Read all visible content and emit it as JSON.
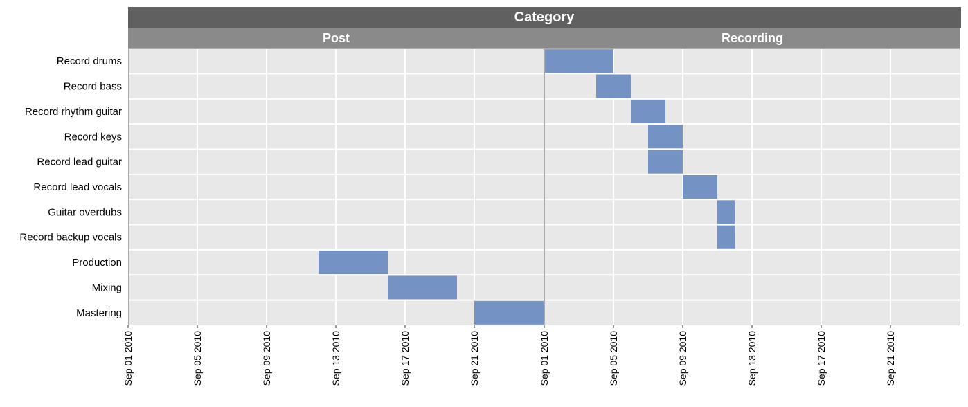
{
  "chart_data": {
    "type": "gantt",
    "facet_title": "Category",
    "facets": [
      {
        "name": "Post",
        "x_ticks": [
          "Sep 01 2010",
          "Sep 05 2010",
          "Sep 09 2010",
          "Sep 13 2010",
          "Sep 17 2010",
          "Sep 21 2010"
        ],
        "xlim": [
          "2010-09-01",
          "2010-09-25"
        ]
      },
      {
        "name": "Recording",
        "x_ticks": [
          "Sep 01 2010",
          "Sep 05 2010",
          "Sep 09 2010",
          "Sep 13 2010",
          "Sep 17 2010",
          "Sep 21 2010"
        ],
        "xlim": [
          "2010-09-01",
          "2010-09-25"
        ]
      }
    ],
    "tasks": [
      {
        "name": "Record drums",
        "category": "Recording",
        "start": "2010-09-01",
        "end": "2010-09-05"
      },
      {
        "name": "Record bass",
        "category": "Recording",
        "start": "2010-09-04",
        "end": "2010-09-06"
      },
      {
        "name": "Record rhythm guitar",
        "category": "Recording",
        "start": "2010-09-06",
        "end": "2010-09-08"
      },
      {
        "name": "Record keys",
        "category": "Recording",
        "start": "2010-09-07",
        "end": "2010-09-09"
      },
      {
        "name": "Record lead guitar",
        "category": "Recording",
        "start": "2010-09-07",
        "end": "2010-09-09"
      },
      {
        "name": "Record lead vocals",
        "category": "Recording",
        "start": "2010-09-09",
        "end": "2010-09-11"
      },
      {
        "name": "Guitar overdubs",
        "category": "Recording",
        "start": "2010-09-11",
        "end": "2010-09-12"
      },
      {
        "name": "Record backup vocals",
        "category": "Recording",
        "start": "2010-09-11",
        "end": "2010-09-12"
      },
      {
        "name": "Production",
        "category": "Post",
        "start": "2010-09-12",
        "end": "2010-09-16"
      },
      {
        "name": "Mixing",
        "category": "Post",
        "start": "2010-09-16",
        "end": "2010-09-20"
      },
      {
        "name": "Mastering",
        "category": "Post",
        "start": "2010-09-21",
        "end": "2010-09-25"
      }
    ],
    "grid": true,
    "bar_color": "#7492C3",
    "panel_color": "#E8E8E8",
    "strip_title_color": "#606060",
    "strip_facet_color": "#8A8A8A"
  }
}
